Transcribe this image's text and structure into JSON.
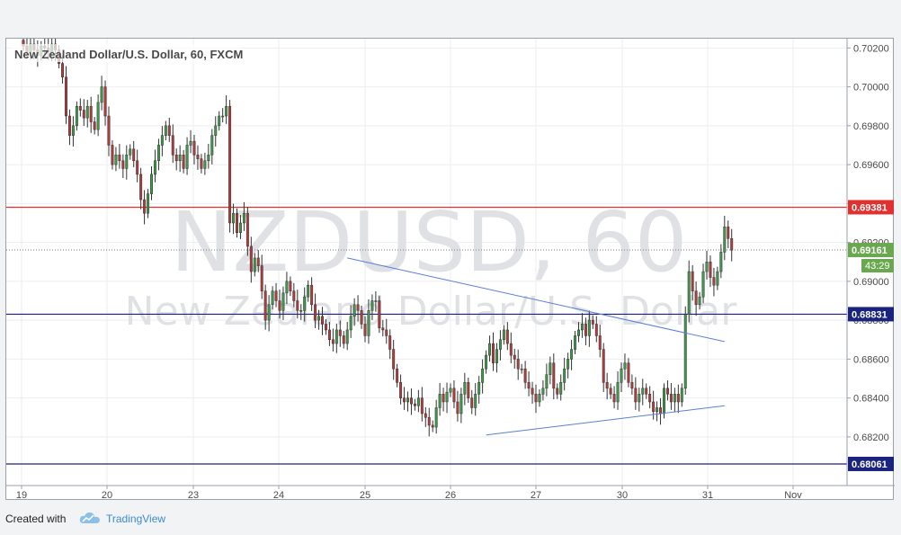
{
  "chart_data": {
    "type": "candlestick",
    "title": "New Zealand Dollar/U.S. Dollar, 60, FXCM",
    "watermark_symbol": "NZDUSD, 60",
    "watermark_name": "New Zealand Dollar/U.S. Dollar",
    "x_tick_labels": [
      "19",
      "20",
      "23",
      "24",
      "25",
      "26",
      "27",
      "30",
      "31",
      "Nov"
    ],
    "y_tick_labels": [
      "0.70200",
      "0.70000",
      "0.69800",
      "0.69600",
      "0.69400",
      "0.69200",
      "0.69000",
      "0.68800",
      "0.68600",
      "0.68400",
      "0.68200"
    ],
    "ylim": [
      0.6801,
      0.7022
    ],
    "candles_per_day": 24,
    "horizontal_lines": [
      {
        "value": "0.69381",
        "price": 0.69381,
        "color": "#e03030"
      },
      {
        "value": "0.68831",
        "price": 0.68831,
        "color": "#1a237e"
      },
      {
        "value": "0.68061",
        "price": 0.68061,
        "color": "#1a237e"
      }
    ],
    "last_price": {
      "value": "0.69161",
      "price": 0.69161,
      "color": "#6aa84f"
    },
    "countdown": "43:29",
    "trendlines": [
      {
        "from": [
          91,
          0.6912
        ],
        "to": [
          197,
          0.6869
        ],
        "color": "#5b7fd4"
      },
      {
        "from": [
          130,
          0.6821
        ],
        "to": [
          197,
          0.6836
        ],
        "color": "#5b7fd4"
      }
    ],
    "up_color": "#3d9a4a",
    "down_color": "#b23b3b",
    "closes": [
      0.7021,
      0.7018,
      0.7022,
      0.7019,
      0.7016,
      0.7021,
      0.702,
      0.7018,
      0.7022,
      0.7019,
      0.7012,
      0.7005,
      0.6985,
      0.6975,
      0.698,
      0.699,
      0.6988,
      0.6984,
      0.699,
      0.6982,
      0.6978,
      0.6992,
      0.7,
      0.6985,
      0.697,
      0.696,
      0.6965,
      0.6962,
      0.6958,
      0.6965,
      0.6968,
      0.6962,
      0.6955,
      0.6942,
      0.6935,
      0.6945,
      0.6955,
      0.6962,
      0.697,
      0.6975,
      0.698,
      0.6975,
      0.6965,
      0.6962,
      0.6965,
      0.6958,
      0.697,
      0.6972,
      0.6965,
      0.6963,
      0.6958,
      0.6962,
      0.6965,
      0.6975,
      0.698,
      0.6985,
      0.6985,
      0.699,
      0.693,
      0.6935,
      0.6925,
      0.693,
      0.6935,
      0.6918,
      0.6905,
      0.6912,
      0.6908,
      0.6895,
      0.688,
      0.6888,
      0.6895,
      0.689,
      0.6885,
      0.6894,
      0.69,
      0.6895,
      0.689,
      0.6885,
      0.6885,
      0.6892,
      0.6898,
      0.6888,
      0.688,
      0.6882,
      0.6878,
      0.6875,
      0.687,
      0.6868,
      0.6875,
      0.6872,
      0.6868,
      0.6875,
      0.6882,
      0.6888,
      0.6885,
      0.6878,
      0.6872,
      0.6885,
      0.689,
      0.689,
      0.6876,
      0.6875,
      0.6872,
      0.6865,
      0.6855,
      0.6848,
      0.684,
      0.6838,
      0.684,
      0.6837,
      0.6836,
      0.684,
      0.6832,
      0.683,
      0.6826,
      0.6825,
      0.6835,
      0.6842,
      0.6838,
      0.6843,
      0.6845,
      0.6838,
      0.6832,
      0.6842,
      0.6848,
      0.684,
      0.6835,
      0.6842,
      0.6848,
      0.6855,
      0.6862,
      0.6868,
      0.6858,
      0.6865,
      0.687,
      0.6875,
      0.6868,
      0.6862,
      0.686,
      0.6855,
      0.6855,
      0.6848,
      0.6845,
      0.6842,
      0.6838,
      0.6842,
      0.6845,
      0.6852,
      0.6858,
      0.6845,
      0.6842,
      0.6848,
      0.6855,
      0.686,
      0.6865,
      0.6872,
      0.6875,
      0.6878,
      0.6872,
      0.688,
      0.6878,
      0.6872,
      0.6865,
      0.6848,
      0.6845,
      0.6842,
      0.6838,
      0.6848,
      0.6855,
      0.6858,
      0.6848,
      0.6845,
      0.6838,
      0.6842,
      0.6845,
      0.6842,
      0.6838,
      0.6833,
      0.6835,
      0.6832,
      0.6845,
      0.6842,
      0.6838,
      0.6842,
      0.6838,
      0.6845,
      0.6883,
      0.6905,
      0.6895,
      0.6888,
      0.6892,
      0.6905,
      0.691,
      0.6902,
      0.6898,
      0.6905,
      0.6915,
      0.6928,
      0.6922,
      0.6916
    ]
  },
  "footer": {
    "created_with": "Created with",
    "brand": "TradingView"
  }
}
